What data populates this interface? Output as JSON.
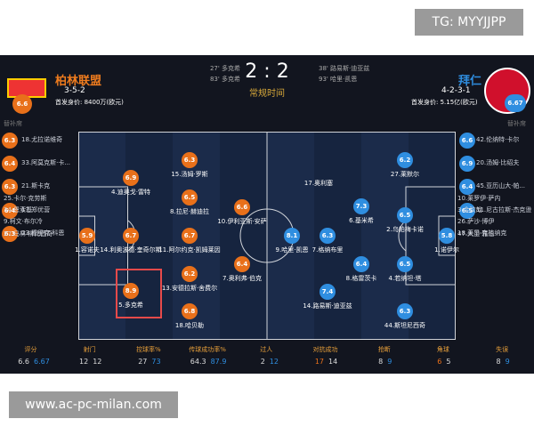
{
  "watermark_top": "TG: MYYJJPP",
  "watermark_bottom": "www.ac-pc-milan.com",
  "header": {
    "score": "2 : 2",
    "status": "常规时间",
    "home": {
      "name": "柏林联盟",
      "formation": "3-5-2",
      "value": "首发身价: 8400万(欧元)",
      "rating": 6.6,
      "goals": [
        "27' 多克希",
        "83' 多克希"
      ]
    },
    "away": {
      "name": "拜仁",
      "formation": "4-2-3-1",
      "value": "首发身价: 5.15亿(欧元)",
      "rating": 6.67,
      "goals": [
        "38' 路易斯·迪亚兹",
        "93' 哈里·凯恩"
      ]
    }
  },
  "bench_label": "替补席",
  "home_bench": [
    {
      "rating": 6.3,
      "name": "18.尤拉诺维奇"
    },
    {
      "rating": 6.4,
      "name": "33.阿莫克斯·卡..."
    },
    {
      "rating": 6.3,
      "name": "21.斯卡克"
    },
    {
      "rating": 6.4,
      "name": "17.郑优营"
    },
    {
      "rating": 6.3,
      "name": "23.穆里克·科恩"
    },
    {
      "name": "25.卡尔·克劳斯"
    },
    {
      "name": "34.恩索基"
    },
    {
      "name": "9.柯文·布尔冷"
    },
    {
      "name": "27.马林·柳比西奇"
    }
  ],
  "away_bench": [
    {
      "rating": 6.6,
      "name": "42.伦纳特·卡尔"
    },
    {
      "rating": 6.9,
      "name": "20.汤姆·比绍夫"
    },
    {
      "rating": 6.4,
      "name": "45.亚历山大·帕..."
    },
    {
      "rating": 6.5,
      "name": "11.尼古拉斯·杰克逊"
    },
    {
      "name": "18.莱昂·克拉纳克"
    },
    {
      "name": "10.莱罗伊·萨内"
    },
    {
      "name": "3.金玟哉"
    },
    {
      "name": "26.萨沙·博伊"
    },
    {
      "name": "47.大卫·雅伯"
    }
  ],
  "home_players": [
    {
      "rating": 5.9,
      "name": "1.容诺夫"
    },
    {
      "rating": 6.9,
      "name": "4.迪奥戈·雷特"
    },
    {
      "rating": 6.7,
      "name": "14.利奥波德·奎奇尔斯"
    },
    {
      "rating": 8.9,
      "name": "5.多克希"
    },
    {
      "rating": 6.3,
      "name": "15.汤姆·罗斯"
    },
    {
      "rating": 6.5,
      "name": "8.拉尼·赫迪拉"
    },
    {
      "rating": 6.7,
      "name": "11.阿尔约克·凯姆莱因"
    },
    {
      "rating": 6.2,
      "name": "13.安德拉斯·舍费尔"
    },
    {
      "rating": 6.8,
      "name": "18.哈贝勒"
    },
    {
      "rating": 6.6,
      "name": "10.伊利亚斯·安萨"
    },
    {
      "rating": 6.4,
      "name": "7.奥利弗·伯克"
    }
  ],
  "away_players": [
    {
      "rating": 5.8,
      "name": "1.诺伊尔"
    },
    {
      "rating": 6.2,
      "name": "27.莱默尔"
    },
    {
      "rating": 6.5,
      "name": "2.乌帕梅卡诺"
    },
    {
      "rating": 6.5,
      "name": "4.若纳坦·塔"
    },
    {
      "rating": 6.3,
      "name": "44.斯坦尼西奇"
    },
    {
      "rating": 7.3,
      "name": "6.基米希"
    },
    {
      "rating": 6.4,
      "name": "8.格雷茨卡"
    },
    {
      "name": "17.奥利塞"
    },
    {
      "rating": 6.3,
      "name": "7.格纳布里"
    },
    {
      "rating": 7.4,
      "name": "14.路易斯·迪亚兹"
    },
    {
      "rating": 8.1,
      "name": "9.哈里·凯恩"
    }
  ],
  "stats": [
    {
      "label": "评分",
      "home": 6.6,
      "away": 6.67
    },
    {
      "label": "射门",
      "home": 12,
      "away": 12
    },
    {
      "label": "控球率%",
      "home": 27,
      "away": 73
    },
    {
      "label": "传球成功率%",
      "home": 64.3,
      "away": 87.9
    },
    {
      "label": "过人",
      "home": 2,
      "away": 12
    },
    {
      "label": "对抗成功",
      "home": 17,
      "away": 14
    },
    {
      "label": "抢断",
      "home": 8,
      "away": 9
    },
    {
      "label": "角球",
      "home": 6,
      "away": 5
    },
    {
      "label": "失误",
      "home": 8,
      "away": 9
    }
  ]
}
